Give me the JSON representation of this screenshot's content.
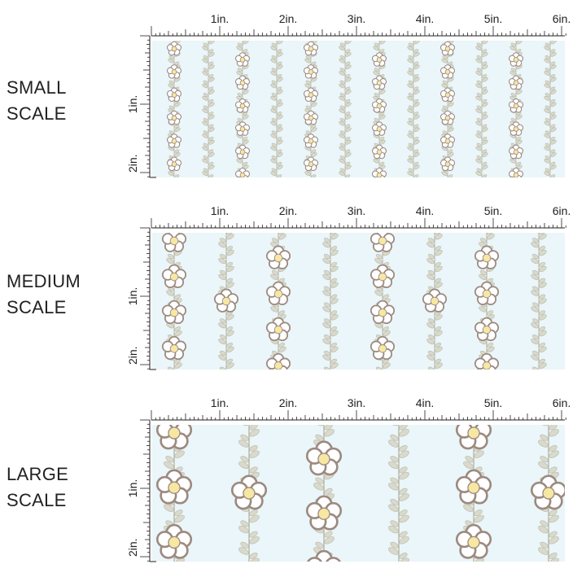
{
  "panels": [
    {
      "key": "small",
      "label_lines": [
        "SMALL",
        "SCALE"
      ],
      "pattern_scale": "small"
    },
    {
      "key": "medium",
      "label_lines": [
        "MEDIUM",
        "SCALE"
      ],
      "pattern_scale": "medium"
    },
    {
      "key": "large",
      "label_lines": [
        "LARGE",
        "SCALE"
      ],
      "pattern_scale": "large"
    }
  ],
  "ruler": {
    "top_labels": [
      "1in.",
      "2in.",
      "3in.",
      "4in.",
      "5in.",
      "6in."
    ],
    "side_labels": [
      "1in.",
      "2in."
    ]
  },
  "colors": {
    "fabric_background": "#eaf6f9",
    "petal_fill": "#ffffff",
    "petal_outline": "#9c8a80",
    "flower_center": "#f6e7a3",
    "leaf": "#d9d9cc",
    "leaf_outline": "#b9b8a8",
    "ruler": "#222222"
  },
  "icons": [
    "daisy-flower-icon",
    "leafy-vine-icon"
  ]
}
